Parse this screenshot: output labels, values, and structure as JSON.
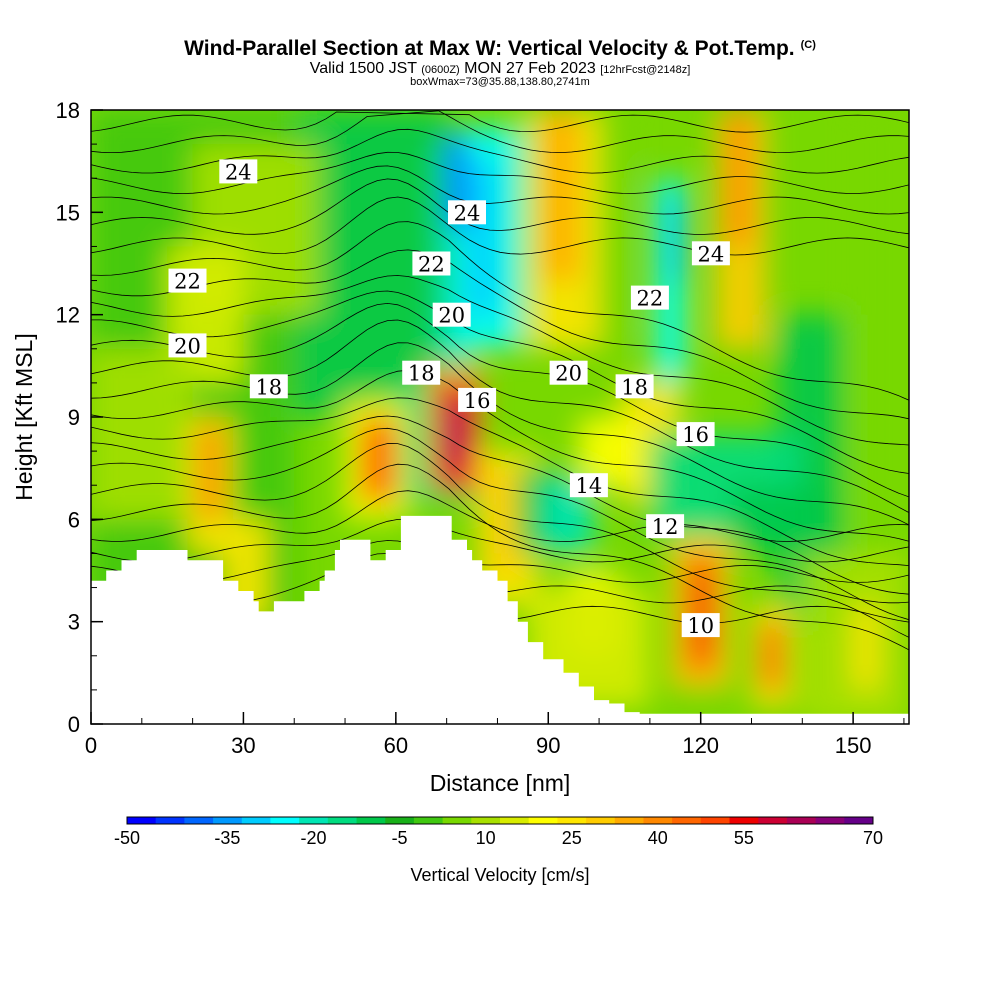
{
  "header": {
    "title": "Wind-Parallel Section at Max W: Vertical Velocity & Pot.Temp.",
    "copyright": "(C)",
    "valid_prefix": "Valid 1500 JST",
    "valid_utc": "(0600Z)",
    "valid_date": "MON 27 Feb 2023",
    "forecast_info": "[12hrFcst@2148z]",
    "box_info": "boxWmax=73@35.88,138.80,2741m"
  },
  "chart_data": {
    "type": "heatmap",
    "xlabel": "Distance [nm]",
    "ylabel": "Height [Kft MSL]",
    "xlim": [
      0,
      161
    ],
    "ylim": [
      0,
      18
    ],
    "x_ticks": [
      0,
      30,
      60,
      90,
      120,
      150
    ],
    "y_ticks": [
      0,
      3,
      6,
      9,
      12,
      15,
      18
    ],
    "colorbar": {
      "label": "Vertical Velocity [cm/s]",
      "tick_labels": [
        -50,
        -35,
        -20,
        -5,
        10,
        25,
        40,
        55,
        70
      ],
      "levels": [
        -50,
        -45,
        -40,
        -35,
        -30,
        -25,
        -20,
        -15,
        -10,
        -5,
        0,
        5,
        10,
        15,
        20,
        25,
        30,
        35,
        40,
        45,
        50,
        55,
        60,
        65,
        70
      ],
      "colors": [
        "#0000ff",
        "#0033ff",
        "#0066ff",
        "#0099ff",
        "#00ccff",
        "#00ffff",
        "#00e6b4",
        "#00dc80",
        "#00c84a",
        "#18b018",
        "#40c810",
        "#78d800",
        "#a8e000",
        "#d8ec00",
        "#ffff00",
        "#ffe600",
        "#ffcc00",
        "#ffaa00",
        "#ff8800",
        "#ff6600",
        "#ff4400",
        "#ee0000",
        "#cc0033",
        "#aa0055",
        "#880077",
        "#660088"
      ]
    },
    "contour_field": "Potential Temperature (C)",
    "contour_labels": [
      {
        "text": "24",
        "x": 29,
        "y": 16.2
      },
      {
        "text": "24",
        "x": 74,
        "y": 15.0
      },
      {
        "text": "24",
        "x": 122,
        "y": 13.8
      },
      {
        "text": "22",
        "x": 19,
        "y": 13.0
      },
      {
        "text": "22",
        "x": 67,
        "y": 13.5
      },
      {
        "text": "22",
        "x": 110,
        "y": 12.5
      },
      {
        "text": "20",
        "x": 19,
        "y": 11.1
      },
      {
        "text": "20",
        "x": 71,
        "y": 12.0
      },
      {
        "text": "20",
        "x": 94,
        "y": 10.3
      },
      {
        "text": "18",
        "x": 35,
        "y": 9.9
      },
      {
        "text": "18",
        "x": 65,
        "y": 10.3
      },
      {
        "text": "18",
        "x": 107,
        "y": 9.9
      },
      {
        "text": "16",
        "x": 76,
        "y": 9.5
      },
      {
        "text": "16",
        "x": 119,
        "y": 8.5
      },
      {
        "text": "14",
        "x": 98,
        "y": 7.0
      },
      {
        "text": "12",
        "x": 113,
        "y": 5.8
      },
      {
        "text": "10",
        "x": 120,
        "y": 2.9
      }
    ],
    "terrain_top_kft": [
      [
        0,
        4.2
      ],
      [
        3,
        4.2
      ],
      [
        3,
        4.5
      ],
      [
        6,
        4.5
      ],
      [
        6,
        4.8
      ],
      [
        9,
        4.8
      ],
      [
        9,
        5.1
      ],
      [
        19,
        5.1
      ],
      [
        19,
        4.8
      ],
      [
        26,
        4.8
      ],
      [
        26,
        4.2
      ],
      [
        29,
        4.2
      ],
      [
        29,
        3.9
      ],
      [
        32,
        3.9
      ],
      [
        32,
        3.6
      ],
      [
        33,
        3.6
      ],
      [
        33,
        3.3
      ],
      [
        36,
        3.3
      ],
      [
        36,
        3.6
      ],
      [
        42,
        3.6
      ],
      [
        42,
        3.9
      ],
      [
        45,
        3.9
      ],
      [
        45,
        4.2
      ],
      [
        46,
        4.2
      ],
      [
        46,
        4.5
      ],
      [
        48,
        4.5
      ],
      [
        48,
        5.1
      ],
      [
        49,
        5.1
      ],
      [
        49,
        5.4
      ],
      [
        55,
        5.4
      ],
      [
        55,
        4.8
      ],
      [
        58,
        4.8
      ],
      [
        58,
        5.1
      ],
      [
        61,
        5.1
      ],
      [
        61,
        6.1
      ],
      [
        71,
        6.1
      ],
      [
        71,
        5.4
      ],
      [
        74,
        5.4
      ],
      [
        74,
        5.1
      ],
      [
        75,
        5.1
      ],
      [
        75,
        4.8
      ],
      [
        77,
        4.8
      ],
      [
        77,
        4.5
      ],
      [
        80,
        4.5
      ],
      [
        80,
        4.2
      ],
      [
        82,
        4.2
      ],
      [
        82,
        3.6
      ],
      [
        84,
        3.6
      ],
      [
        84,
        3.0
      ],
      [
        86,
        3.0
      ],
      [
        86,
        2.4
      ],
      [
        89,
        2.4
      ],
      [
        89,
        1.9
      ],
      [
        93,
        1.9
      ],
      [
        93,
        1.5
      ],
      [
        96,
        1.5
      ],
      [
        96,
        1.1
      ],
      [
        99,
        1.1
      ],
      [
        99,
        0.7
      ],
      [
        102,
        0.7
      ],
      [
        102,
        0.6
      ],
      [
        105,
        0.6
      ],
      [
        105,
        0.35
      ],
      [
        108,
        0.35
      ],
      [
        108,
        0.3
      ],
      [
        161,
        0.3
      ]
    ],
    "grid": false,
    "legend": "none"
  }
}
